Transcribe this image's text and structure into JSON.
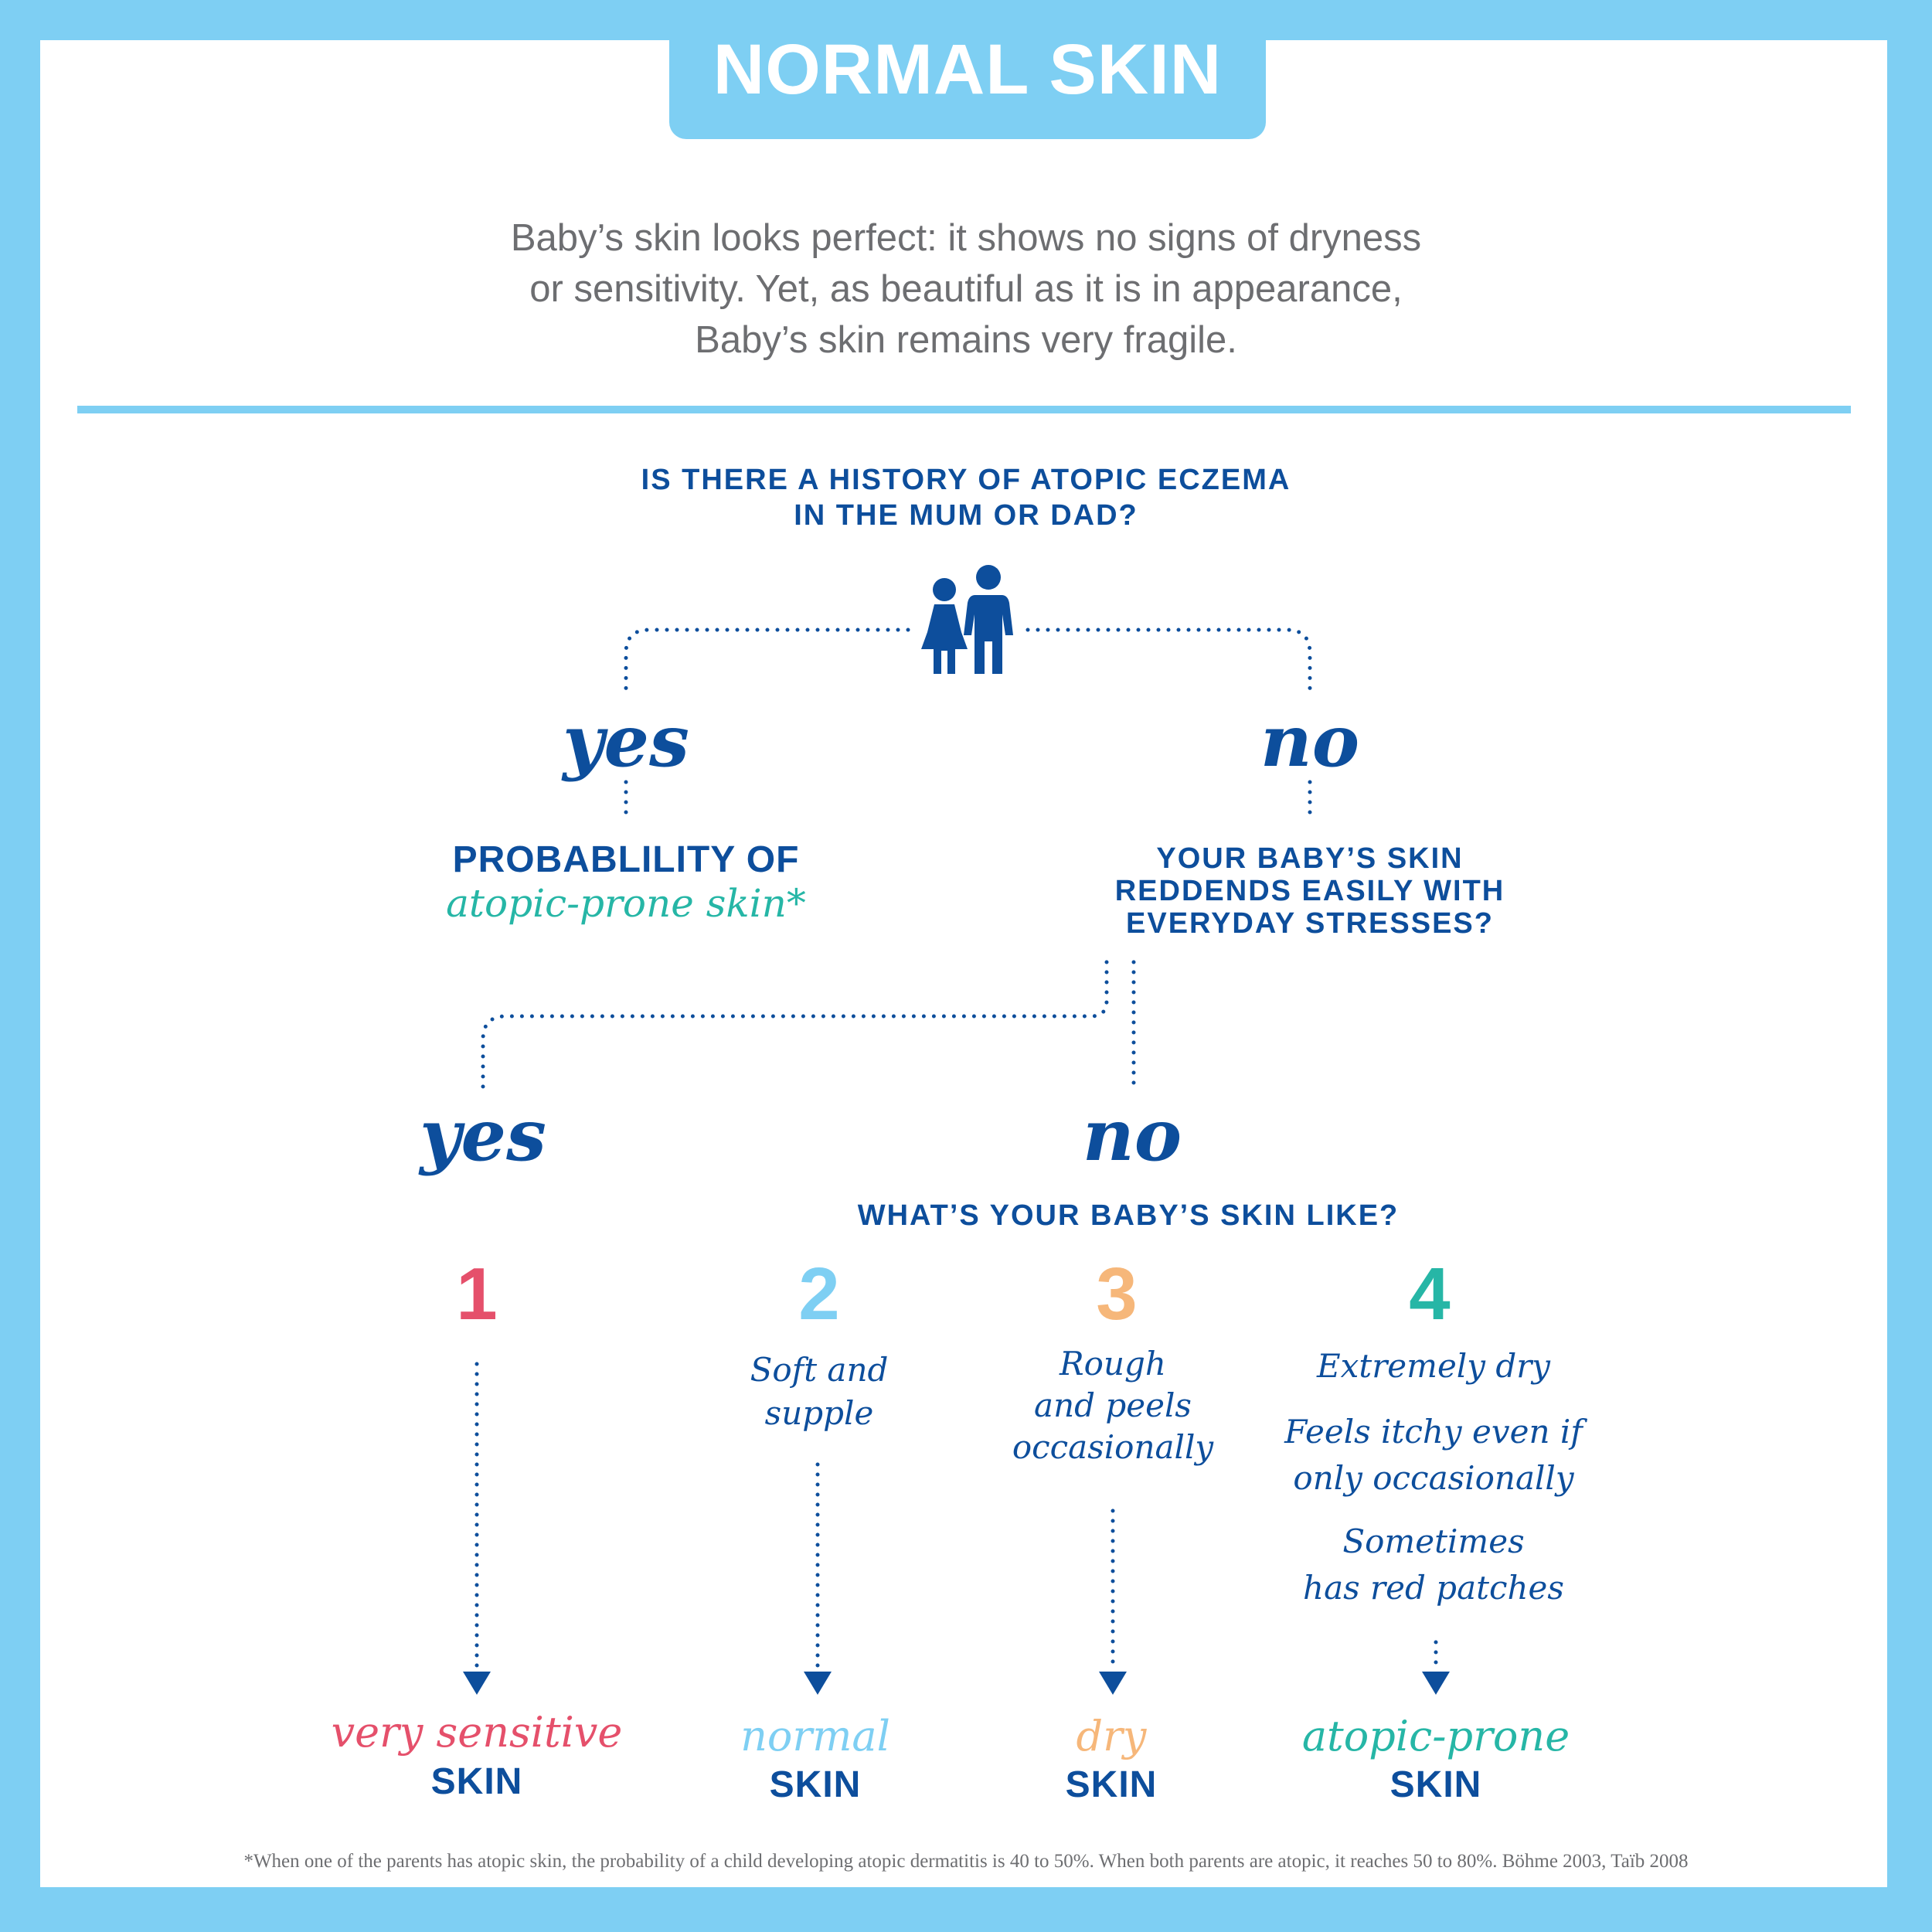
{
  "title": "NORMAL SKIN",
  "intro": "Baby’s skin looks perfect: it shows no signs of dryness\nor sensitivity. Yet, as beautiful as it is in appearance,\nBaby’s skin remains very fragile.",
  "question1": "IS THERE A HISTORY OF ATOPIC ECZEMA\nIN THE MUM OR DAD?",
  "parents_icon": "parents-icon",
  "branch1": {
    "yes_label": "yes",
    "no_label": "no",
    "yes_outcome_line1": "PROBABLILITY OF",
    "yes_outcome_line2": "atopic-prone skin*",
    "no_question": "YOUR BABY’S SKIN\nREDDENDS EASILY WITH\nEVERYDAY STRESSES?"
  },
  "branch2": {
    "yes_label": "yes",
    "no_label": "no",
    "no_question": "WHAT’S YOUR BABY’S SKIN LIKE?"
  },
  "options": [
    {
      "number": "1",
      "color": "#e5506b",
      "description": "",
      "result": "very sensitive",
      "result_suffix": "SKIN"
    },
    {
      "number": "2",
      "color": "#7ecff3",
      "description": "Soft and\nsupple",
      "result": "normal",
      "result_suffix": "SKIN"
    },
    {
      "number": "3",
      "color": "#f6b77a",
      "description": "Rough\nand peels\noccasionally",
      "result": "dry",
      "result_suffix": "SKIN"
    },
    {
      "number": "4",
      "color": "#26b6a6",
      "description": "Extremely dry",
      "description2": "Feels itchy even if\nonly occasionally",
      "description3": "Sometimes\nhas red patches",
      "result": "atopic-prone",
      "result_suffix": "SKIN"
    }
  ],
  "colors": {
    "background": "#7ecff3",
    "navy": "#0d4e9c",
    "teal": "#26b6a6",
    "text_gray": "#6d6e71"
  },
  "footnote": "*When one of the parents has atopic skin, the probability of a child developing atopic dermatitis is 40 to 50%. When both parents are atopic, it reaches 50 to 80%. Böhme 2003, Taïb 2008"
}
